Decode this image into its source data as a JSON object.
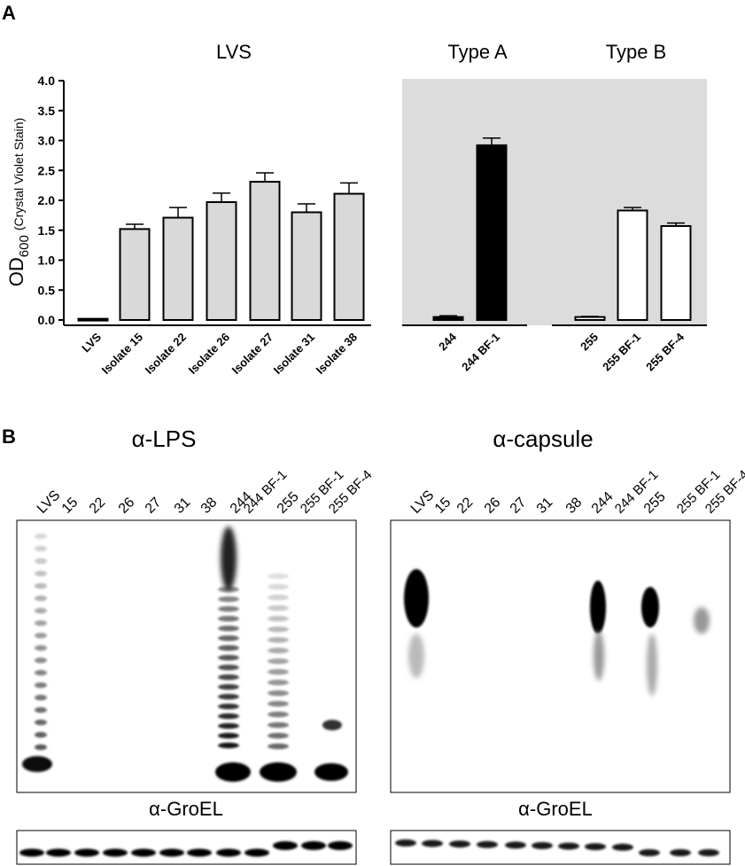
{
  "panel_a": {
    "label": "A",
    "groups": [
      {
        "label": "LVS",
        "shaded": false
      },
      {
        "label": "Type A",
        "shaded": true
      },
      {
        "label": "Type B",
        "shaded": true
      }
    ],
    "ylabel_main": "OD",
    "ylabel_sub": "600",
    "ylabel_paren": "(Crystal Violet Stain)",
    "colors": {
      "lvs_fill": "#d9d9d9",
      "typeA_fill": "#000000",
      "typeB_fill": "#ffffff",
      "shade": "#dcdcdc"
    }
  },
  "chart_data": {
    "type": "bar",
    "ylim": [
      0,
      4.0
    ],
    "yticks": [
      "0.0",
      "0.5",
      "1.0",
      "1.5",
      "2.0",
      "2.5",
      "3.0",
      "3.5",
      "4.0"
    ],
    "categories": [
      "LVS",
      "Isolate 15",
      "Isolate 22",
      "Isolate 26",
      "Isolate 27",
      "Isolate 31",
      "Isolate 38",
      "244",
      "244 BF-1",
      "255",
      "255 BF-1",
      "255 BF-4"
    ],
    "values": [
      0.02,
      1.52,
      1.71,
      1.97,
      2.31,
      1.8,
      2.11,
      0.05,
      2.92,
      0.05,
      1.83,
      1.57
    ],
    "errors": [
      0.0,
      0.08,
      0.17,
      0.15,
      0.15,
      0.14,
      0.18,
      0.02,
      0.12,
      0.01,
      0.05,
      0.05
    ],
    "groups": [
      "LVS",
      "LVS",
      "LVS",
      "LVS",
      "LVS",
      "LVS",
      "LVS",
      "Type A",
      "Type A",
      "Type B",
      "Type B",
      "Type B"
    ]
  },
  "panel_b": {
    "label": "B",
    "blots": [
      {
        "title": "α-LPS",
        "lanes": [
          "LVS",
          "15",
          "22",
          "26",
          "27",
          "31",
          "38",
          "244",
          "244 BF-1",
          "255",
          "255 BF-1",
          "255 BF-4"
        ],
        "loading_label": "α-GroEL"
      },
      {
        "title": "α-capsule",
        "lanes": [
          "LVS",
          "15",
          "22",
          "26",
          "27",
          "31",
          "38",
          "244",
          "244 BF-1",
          "255",
          "255 BF-1",
          "255 BF-4"
        ],
        "loading_label": "α-GroEL"
      }
    ]
  }
}
